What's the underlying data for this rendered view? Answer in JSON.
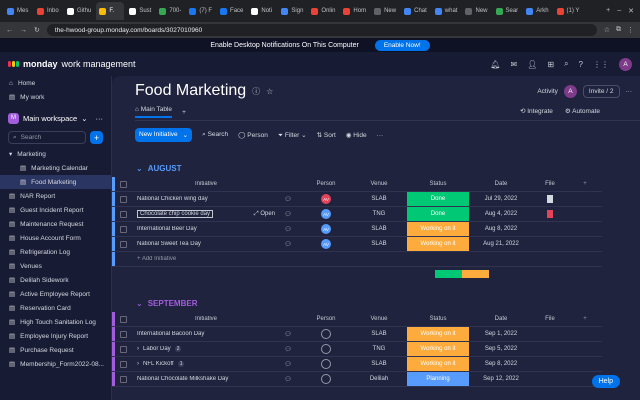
{
  "browser": {
    "tabs": [
      {
        "label": "Mes",
        "color": "#4285f4"
      },
      {
        "label": "Inbo",
        "color": "#ea4335"
      },
      {
        "label": "Githu",
        "color": "#ffffff"
      },
      {
        "label": "F.",
        "color": "#fbbc04",
        "active": true
      },
      {
        "label": "Sust",
        "color": "#ffffff"
      },
      {
        "label": "700-",
        "color": "#34a853"
      },
      {
        "label": "(7) F",
        "color": "#1877f2"
      },
      {
        "label": "Face",
        "color": "#1877f2"
      },
      {
        "label": "Noti",
        "color": "#ffffff"
      },
      {
        "label": "Sign",
        "color": "#4285f4"
      },
      {
        "label": "Onlin",
        "color": "#ea4335"
      },
      {
        "label": "Hom",
        "color": "#ea4335"
      },
      {
        "label": "New",
        "color": "#5f6368"
      },
      {
        "label": "Chat",
        "color": "#4285f4"
      },
      {
        "label": "what",
        "color": "#4285f4"
      },
      {
        "label": "New",
        "color": "#5f6368"
      },
      {
        "label": "Sear",
        "color": "#34a853"
      },
      {
        "label": "Arkh",
        "color": "#4285f4"
      },
      {
        "label": "(1) Y",
        "color": "#ea4335"
      }
    ],
    "url": "the-hwood-group.monday.com/boards/3027010960"
  },
  "notification": {
    "text": "Enable Desktop Notifications On This Computer",
    "button": "Enable Now!"
  },
  "app": {
    "brand": "monday",
    "product": "work management",
    "avatar": "A"
  },
  "sidebar": {
    "home": "Home",
    "mywork": "My work",
    "workspace": "Main workspace",
    "workspace_badge": "M",
    "search_placeholder": "Search",
    "folder": "Marketing",
    "folder_items": [
      "Marketing Calendar",
      "Food Marketing"
    ],
    "boards": [
      "NAR Report",
      "Guest Incident Report",
      "Maintenance Request",
      "House Account Form",
      "Refrigeration Log",
      "Venues",
      "Delilah Sidework",
      "Active Employee Report",
      "Reservation Card",
      "High Touch Sanitation Log",
      "Employee Injury Report",
      "Purchase Request",
      "Membership_Form2022-08..."
    ]
  },
  "board": {
    "title": "Food Marketing",
    "activity": "Activity",
    "activity_avatar": "A",
    "invite": "Invite / 2",
    "tabs": [
      "Main Table",
      "+"
    ],
    "integrate": "Integrate",
    "automate": "Automate",
    "toolbar": {
      "new": "New Initiative",
      "search": "Search",
      "person": "Person",
      "filter": "Filter",
      "sort": "Sort",
      "hide": "Hide"
    }
  },
  "columns": {
    "initiative": "Initiative",
    "person": "Person",
    "venue": "Venue",
    "status": "Status",
    "date": "Date",
    "file": "File"
  },
  "groups": [
    {
      "name": "AUGUST",
      "color": "#579bfc",
      "add": "+ Add Initiative",
      "rows": [
        {
          "name": "National Chicken wing day",
          "avatars": [
            "AV"
          ],
          "venue": "SLAB",
          "status": "Done",
          "status_color": "#00c875",
          "date": "Jul 29, 2022",
          "file": "doc"
        },
        {
          "name": "Chocolate chip cookie day",
          "open": "Open",
          "avatars": [
            "AV"
          ],
          "venue": "TNG",
          "status": "Done",
          "status_color": "#00c875",
          "date": "Aug 4, 2022",
          "file": "pdf"
        },
        {
          "name": "International Beer Day",
          "avatars": [
            "AV"
          ],
          "venue": "SLAB",
          "status": "Working on it",
          "status_color": "#fdab3d",
          "date": "Aug 8, 2022",
          "file": ""
        },
        {
          "name": "National Sweet Tea Day",
          "avatars": [
            "AV"
          ],
          "venue": "SLAB",
          "status": "Working on it",
          "status_color": "#fdab3d",
          "date": "Aug 21, 2022",
          "file": ""
        }
      ],
      "summary": [
        {
          "color": "#00c875",
          "value": 0.5
        },
        {
          "color": "#fdab3d",
          "value": 0.5
        }
      ]
    },
    {
      "name": "SEPTEMBER",
      "color": "#a25ddc",
      "rows": [
        {
          "name": "International Bacoon Day",
          "avatars": [],
          "venue": "SLAB",
          "status": "Working on it",
          "status_color": "#fdab3d",
          "date": "Sep 1, 2022",
          "file": ""
        },
        {
          "name": "Labor Day",
          "count": "2",
          "avatars": [],
          "venue": "TNG",
          "status": "Working on it",
          "status_color": "#fdab3d",
          "date": "Sep 5, 2022",
          "file": ""
        },
        {
          "name": "NFL Kickoff",
          "count": "1",
          "avatars": [],
          "venue": "SLAB",
          "status": "Working on it",
          "status_color": "#fdab3d",
          "date": "Sep 8, 2022",
          "file": ""
        },
        {
          "name": "National Chocolate Milkshake Day",
          "avatars": [],
          "venue": "Delilah",
          "status": "Planning",
          "status_color": "#579bfc",
          "date": "Sep 12, 2022",
          "file": ""
        }
      ]
    }
  ],
  "help": "Help"
}
